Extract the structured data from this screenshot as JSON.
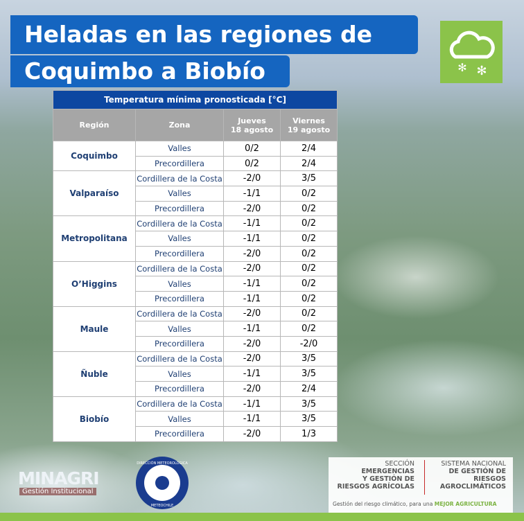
{
  "header": {
    "title_lines": [
      "Heladas en las regiones de",
      "Coquimbo a Biobío"
    ]
  },
  "table": {
    "caption": "Temperatura mínima pronosticada [°C]",
    "columns": [
      [
        "Región"
      ],
      [
        "Zona"
      ],
      [
        "Jueves",
        "18 agosto"
      ],
      [
        "Viernes",
        "19 agosto"
      ]
    ],
    "regions": [
      {
        "name": "Coquimbo",
        "rows": [
          [
            "Valles",
            "0/2",
            "2/4"
          ],
          [
            "Precordillera",
            "0/2",
            "2/4"
          ]
        ]
      },
      {
        "name": "Valparaíso",
        "rows": [
          [
            "Cordillera de la Costa",
            "-2/0",
            "3/5"
          ],
          [
            "Valles",
            "-1/1",
            "0/2"
          ],
          [
            "Precordillera",
            "-2/0",
            "0/2"
          ]
        ]
      },
      {
        "name": "Metropolitana",
        "rows": [
          [
            "Cordillera de la Costa",
            "-1/1",
            "0/2"
          ],
          [
            "Valles",
            "-1/1",
            "0/2"
          ],
          [
            "Precordillera",
            "-2/0",
            "0/2"
          ]
        ]
      },
      {
        "name": "O’Higgins",
        "rows": [
          [
            "Cordillera de la Costa",
            "-2/0",
            "0/2"
          ],
          [
            "Valles",
            "-1/1",
            "0/2"
          ],
          [
            "Precordillera",
            "-1/1",
            "0/2"
          ]
        ]
      },
      {
        "name": "Maule",
        "rows": [
          [
            "Cordillera de la Costa",
            "-2/0",
            "0/2"
          ],
          [
            "Valles",
            "-1/1",
            "0/2"
          ],
          [
            "Precordillera",
            "-2/0",
            "-2/0"
          ]
        ]
      },
      {
        "name": "Ñuble",
        "rows": [
          [
            "Cordillera de la Costa",
            "-2/0",
            "3/5"
          ],
          [
            "Valles",
            "-1/1",
            "3/5"
          ],
          [
            "Precordillera",
            "-2/0",
            "2/4"
          ]
        ]
      },
      {
        "name": "Biobío",
        "rows": [
          [
            "Cordillera de la Costa",
            "-1/1",
            "3/5"
          ],
          [
            "Valles",
            "-1/1",
            "3/5"
          ],
          [
            "Precordillera",
            "-2/0",
            "1/3"
          ]
        ]
      }
    ]
  },
  "footer": {
    "minagri": [
      "MINAGRI",
      "Gestión Institucional"
    ],
    "meteo": [
      "DIRECCIÓN METEOROLÓGICA",
      "METEOCHILE"
    ],
    "section": [
      "SECCIÓN",
      "EMERGENCIAS",
      "Y GESTIÓN DE",
      "RIESGOS AGRÍCOLAS"
    ],
    "system": [
      "SISTEMA NACIONAL",
      "DE GESTIÓN DE",
      "RIESGOS",
      "AGROCLIMÁTICOS"
    ],
    "tagline": [
      "Gestión del riesgo climático, para una ",
      "MEJOR AGRICULTURA"
    ]
  }
}
